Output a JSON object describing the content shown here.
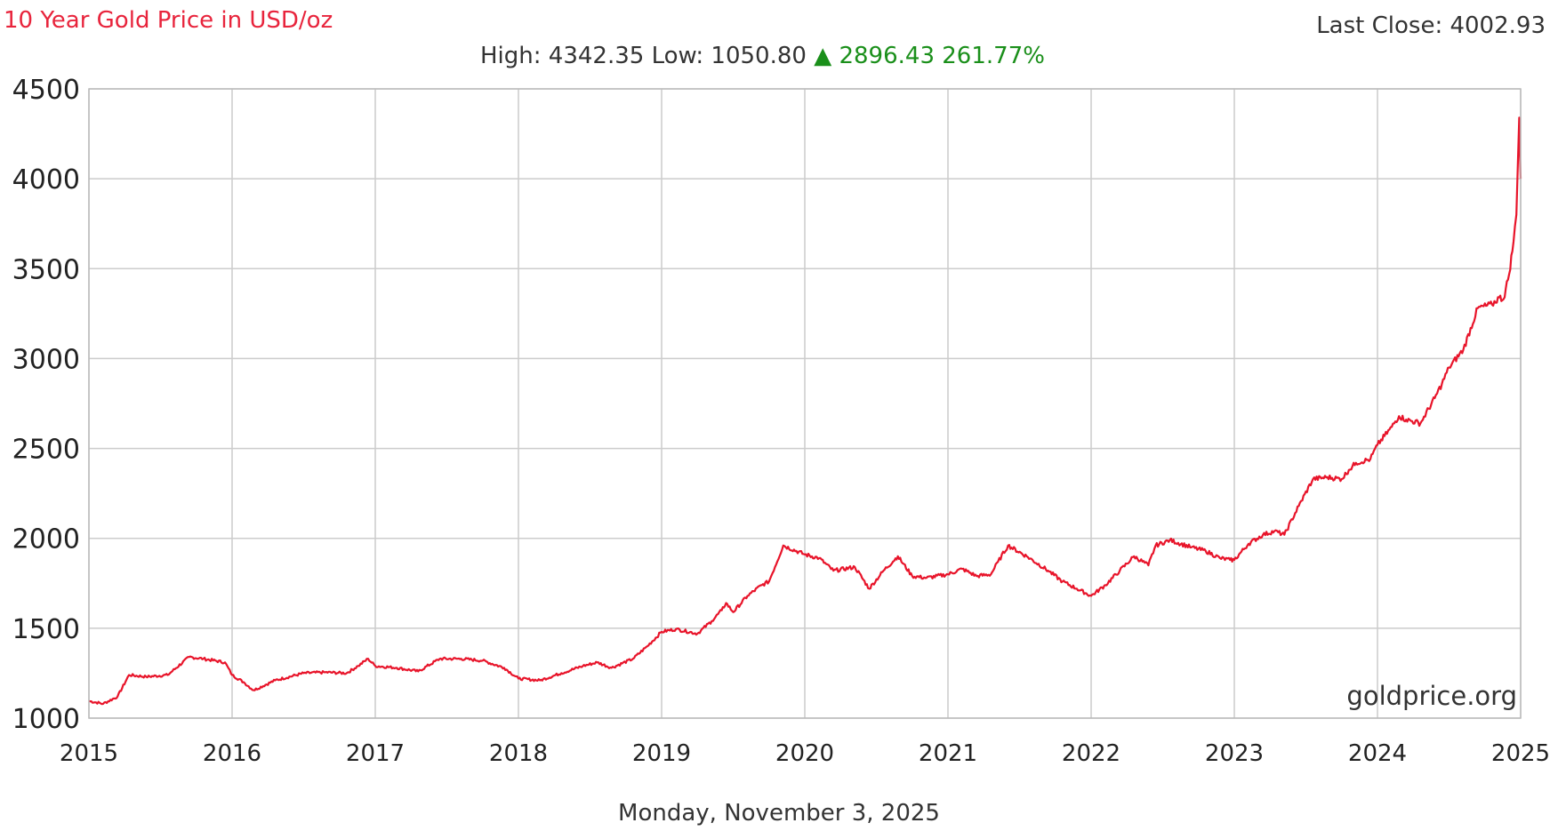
{
  "header": {
    "title": "10 Year Gold Price in USD/oz",
    "last_close_label": "Last Close:",
    "last_close_value": "4002.93",
    "high_label": "High:",
    "high_value": "4342.35",
    "low_label": "Low:",
    "low_value": "1050.80",
    "change_arrow": "▲",
    "change_value": "2896.43",
    "change_percent": "261.77%"
  },
  "footer": {
    "date": "Monday, November 3, 2025"
  },
  "watermark": "goldprice.org",
  "colors": {
    "line": "#e8142a",
    "title": "#e8243c",
    "positive": "#1a8f1a",
    "grid": "#cccccc"
  },
  "chart_data": {
    "type": "line",
    "title": "10 Year Gold Price in USD/oz",
    "xlabel": "",
    "ylabel": "",
    "xlim": [
      2015,
      2025
    ],
    "ylim": [
      1000,
      4500
    ],
    "xticks": [
      "2015",
      "2016",
      "2017",
      "2018",
      "2019",
      "2020",
      "2021",
      "2022",
      "2023",
      "2024",
      "2025"
    ],
    "yticks": [
      "1000",
      "1500",
      "2000",
      "2500",
      "3000",
      "3500",
      "4000",
      "4500"
    ],
    "grid": true,
    "legend": "none",
    "series": [
      {
        "x": [
          2015.0,
          2015.1,
          2015.2,
          2015.28,
          2015.4,
          2015.55,
          2015.7,
          2015.8,
          2015.95,
          2016.0,
          2016.08,
          2016.15,
          2016.3,
          2016.5,
          2016.65,
          2016.8,
          2016.88,
          2016.95,
          2017.0,
          2017.15,
          2017.3,
          2017.45,
          2017.6,
          2017.75,
          2017.9,
          2018.0,
          2018.15,
          2018.3,
          2018.45,
          2018.55,
          2018.65,
          2018.8,
          2018.9,
          2019.0,
          2019.1,
          2019.25,
          2019.35,
          2019.42,
          2019.45,
          2019.5,
          2019.6,
          2019.7,
          2019.75,
          2019.85,
          2020.0,
          2020.1,
          2020.2,
          2020.35,
          2020.45,
          2020.55,
          2020.65,
          2020.75,
          2020.85,
          2021.0,
          2021.1,
          2021.2,
          2021.3,
          2021.35,
          2021.42,
          2021.55,
          2021.7,
          2021.8,
          2021.9,
          2022.0,
          2022.1,
          2022.2,
          2022.3,
          2022.4,
          2022.45,
          2022.55,
          2022.7,
          2022.8,
          2022.9,
          2022.97,
          2023.0,
          2023.1,
          2023.2,
          2023.28,
          2023.35,
          2023.45,
          2023.55,
          2023.65,
          2023.75,
          2023.8,
          2023.85,
          2023.95,
          2024.0,
          2024.1,
          2024.15,
          2024.2,
          2024.3,
          2024.4,
          2024.45,
          2024.5,
          2024.6,
          2024.7,
          2024.8,
          2024.85,
          2024.88,
          2024.92,
          2024.95,
          2024.97,
          2024.99,
          2025.0
        ],
        "values": [
          1095,
          1080,
          1120,
          1240,
          1230,
          1240,
          1340,
          1330,
          1310,
          1240,
          1200,
          1155,
          1210,
          1250,
          1255,
          1250,
          1290,
          1330,
          1290,
          1280,
          1260,
          1330,
          1330,
          1320,
          1280,
          1220,
          1210,
          1250,
          1290,
          1310,
          1280,
          1330,
          1400,
          1480,
          1495,
          1470,
          1540,
          1600,
          1640,
          1590,
          1680,
          1740,
          1760,
          1960,
          1910,
          1890,
          1820,
          1840,
          1720,
          1820,
          1900,
          1790,
          1780,
          1800,
          1830,
          1790,
          1800,
          1870,
          1960,
          1900,
          1820,
          1760,
          1720,
          1680,
          1740,
          1820,
          1900,
          1850,
          1960,
          1990,
          1950,
          1930,
          1890,
          1880,
          1880,
          1970,
          2020,
          2040,
          2020,
          2180,
          2330,
          2340,
          2330,
          2380,
          2420,
          2440,
          2520,
          2620,
          2680,
          2660,
          2640,
          2780,
          2860,
          2950,
          3050,
          3280,
          3300,
          3340,
          3330,
          3470,
          3650,
          3800,
          4340,
          4000
        ]
      }
    ]
  }
}
